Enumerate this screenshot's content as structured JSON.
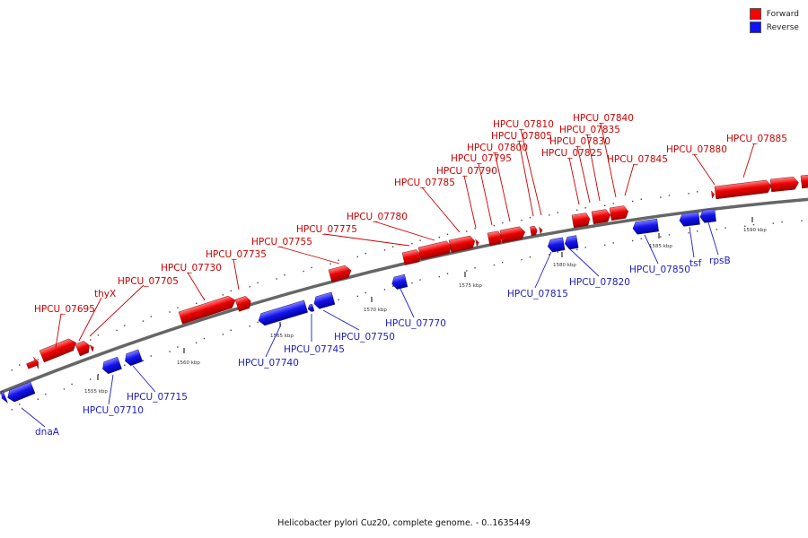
{
  "legend": {
    "forward": {
      "label": "Forward",
      "color": "#ff0000"
    },
    "reverse": {
      "label": "Reverse",
      "color": "#1010ff"
    }
  },
  "caption": "Helicobacter pylori Cuz20, complete genome. - 0..1635449",
  "ticks": [
    "1555 kbp",
    "1560 kbp",
    "1565 kbp",
    "1570 kbp",
    "1575 kbp",
    "1580 kbp",
    "1585 kbp",
    "1590 kbp"
  ],
  "labels": {
    "forward": [
      "HPCU_07695",
      "thyX",
      "HPCU_07705",
      "HPCU_07730",
      "HPCU_07735",
      "HPCU_07755",
      "HPCU_07775",
      "HPCU_07780",
      "HPCU_07785",
      "HPCU_07790",
      "HPCU_07795",
      "HPCU_07800",
      "HPCU_07805",
      "HPCU_07810",
      "HPCU_07825",
      "HPCU_07830",
      "HPCU_07835",
      "HPCU_07840",
      "HPCU_07845",
      "HPCU_07880",
      "HPCU_07885"
    ],
    "reverse": [
      "dnaA",
      "HPCU_07710",
      "HPCU_07715",
      "HPCU_07740",
      "HPCU_07745",
      "HPCU_07750",
      "HPCU_07770",
      "HPCU_07815",
      "HPCU_07820",
      "HPCU_07850",
      "tsf",
      "rpsB"
    ]
  }
}
